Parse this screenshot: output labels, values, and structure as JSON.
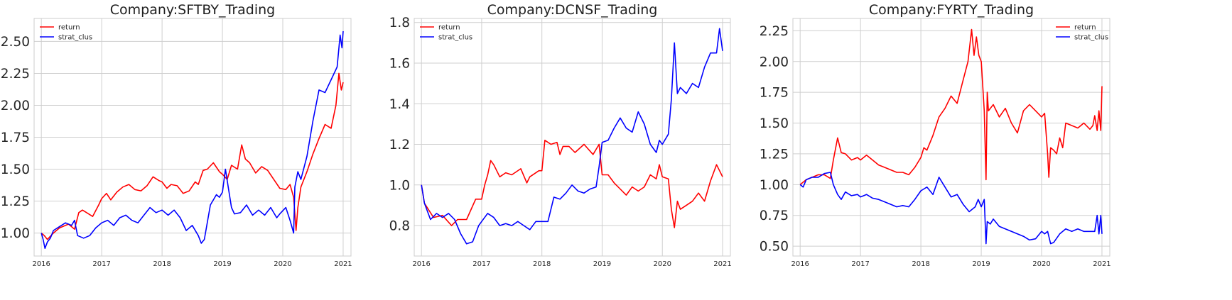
{
  "chart_data": [
    {
      "type": "line",
      "title": "Company:SFTBY_Trading",
      "xlabel": "",
      "ylabel": "",
      "xlim": [
        2015.88,
        2021.13
      ],
      "ylim": [
        0.82,
        2.68
      ],
      "xticks": [
        2016,
        2017,
        2018,
        2019,
        2020,
        2021
      ],
      "yticks": [
        1.0,
        1.25,
        1.5,
        1.75,
        2.0,
        2.25,
        2.5
      ],
      "ytick_labels": [
        "1.00",
        "1.25",
        "1.50",
        "1.75",
        "2.00",
        "2.25",
        "2.50"
      ],
      "grid": true,
      "legend_position": "upper-left",
      "series": [
        {
          "name": "return",
          "color": "#ff0000",
          "x": [
            2016.0,
            2016.05,
            2016.1,
            2016.2,
            2016.3,
            2016.45,
            2016.55,
            2016.62,
            2016.68,
            2016.75,
            2016.85,
            2016.95,
            2017.0,
            2017.08,
            2017.15,
            2017.25,
            2017.35,
            2017.45,
            2017.55,
            2017.65,
            2017.75,
            2017.85,
            2017.95,
            2018.0,
            2018.08,
            2018.15,
            2018.25,
            2018.35,
            2018.45,
            2018.55,
            2018.6,
            2018.68,
            2018.75,
            2018.85,
            2018.95,
            2019.0,
            2019.08,
            2019.15,
            2019.25,
            2019.32,
            2019.38,
            2019.45,
            2019.55,
            2019.65,
            2019.75,
            2019.85,
            2019.95,
            2020.05,
            2020.12,
            2020.18,
            2020.22,
            2020.25,
            2020.3,
            2020.4,
            2020.5,
            2020.6,
            2020.7,
            2020.8,
            2020.88,
            2020.93,
            2020.97,
            2021.0
          ],
          "y": [
            1.0,
            0.98,
            0.95,
            1.0,
            1.04,
            1.07,
            1.03,
            1.16,
            1.18,
            1.16,
            1.13,
            1.22,
            1.27,
            1.31,
            1.26,
            1.32,
            1.36,
            1.38,
            1.34,
            1.33,
            1.37,
            1.44,
            1.41,
            1.4,
            1.35,
            1.38,
            1.37,
            1.31,
            1.33,
            1.4,
            1.38,
            1.49,
            1.5,
            1.55,
            1.48,
            1.46,
            1.42,
            1.53,
            1.5,
            1.69,
            1.58,
            1.55,
            1.47,
            1.52,
            1.49,
            1.42,
            1.35,
            1.34,
            1.38,
            1.28,
            1.02,
            1.2,
            1.36,
            1.48,
            1.62,
            1.74,
            1.85,
            1.82,
            2.0,
            2.25,
            2.12,
            2.18
          ]
        },
        {
          "name": "strat_clus",
          "color": "#0000ff",
          "x": [
            2016.0,
            2016.03,
            2016.06,
            2016.1,
            2016.15,
            2016.2,
            2016.3,
            2016.4,
            2016.5,
            2016.55,
            2016.6,
            2016.7,
            2016.8,
            2016.9,
            2017.0,
            2017.1,
            2017.2,
            2017.3,
            2017.4,
            2017.5,
            2017.6,
            2017.7,
            2017.8,
            2017.9,
            2018.0,
            2018.1,
            2018.2,
            2018.3,
            2018.4,
            2018.5,
            2018.6,
            2018.65,
            2018.7,
            2018.8,
            2018.9,
            2018.95,
            2019.0,
            2019.05,
            2019.1,
            2019.15,
            2019.2,
            2019.3,
            2019.4,
            2019.5,
            2019.6,
            2019.7,
            2019.8,
            2019.9,
            2019.95,
            2020.05,
            2020.12,
            2020.18,
            2020.2,
            2020.25,
            2020.3,
            2020.4,
            2020.5,
            2020.6,
            2020.7,
            2020.8,
            2020.9,
            2020.95,
            2020.98,
            2021.0
          ],
          "y": [
            1.0,
            0.95,
            0.88,
            0.93,
            0.96,
            1.02,
            1.05,
            1.08,
            1.06,
            1.1,
            0.98,
            0.96,
            0.98,
            1.04,
            1.08,
            1.1,
            1.06,
            1.12,
            1.14,
            1.1,
            1.08,
            1.14,
            1.2,
            1.16,
            1.18,
            1.14,
            1.18,
            1.12,
            1.02,
            1.06,
            0.98,
            0.92,
            0.95,
            1.22,
            1.3,
            1.28,
            1.32,
            1.5,
            1.35,
            1.2,
            1.15,
            1.16,
            1.22,
            1.14,
            1.18,
            1.14,
            1.2,
            1.12,
            1.15,
            1.2,
            1.1,
            1.0,
            1.36,
            1.48,
            1.42,
            1.6,
            1.88,
            2.12,
            2.1,
            2.2,
            2.3,
            2.55,
            2.45,
            2.58
          ]
        }
      ]
    },
    {
      "type": "line",
      "title": "Company:DCNSF_Trading",
      "xlabel": "",
      "ylabel": "",
      "xlim": [
        2015.88,
        2021.13
      ],
      "ylim": [
        0.65,
        1.82
      ],
      "xticks": [
        2016,
        2017,
        2018,
        2019,
        2020,
        2021
      ],
      "yticks": [
        0.8,
        1.0,
        1.2,
        1.4,
        1.6,
        1.8
      ],
      "ytick_labels": [
        "0.8",
        "1.0",
        "1.2",
        "1.4",
        "1.6",
        "1.8"
      ],
      "grid": true,
      "legend_position": "upper-left",
      "series": [
        {
          "name": "return",
          "color": "#ff0000",
          "x": [
            2016.0,
            2016.05,
            2016.2,
            2016.35,
            2016.5,
            2016.6,
            2016.75,
            2016.9,
            2017.0,
            2017.05,
            2017.1,
            2017.15,
            2017.2,
            2017.3,
            2017.4,
            2017.5,
            2017.65,
            2017.75,
            2017.8,
            2017.95,
            2018.0,
            2018.05,
            2018.15,
            2018.25,
            2018.3,
            2018.35,
            2018.45,
            2018.55,
            2018.7,
            2018.85,
            2018.95,
            2019.0,
            2019.1,
            2019.2,
            2019.3,
            2019.4,
            2019.5,
            2019.6,
            2019.7,
            2019.8,
            2019.9,
            2019.95,
            2020.0,
            2020.1,
            2020.15,
            2020.2,
            2020.25,
            2020.3,
            2020.4,
            2020.5,
            2020.6,
            2020.7,
            2020.8,
            2020.9,
            2021.0
          ],
          "y": [
            1.0,
            0.91,
            0.84,
            0.85,
            0.8,
            0.83,
            0.83,
            0.93,
            0.93,
            1.0,
            1.05,
            1.12,
            1.1,
            1.04,
            1.06,
            1.05,
            1.08,
            1.01,
            1.04,
            1.07,
            1.07,
            1.22,
            1.2,
            1.21,
            1.15,
            1.19,
            1.19,
            1.16,
            1.2,
            1.15,
            1.2,
            1.05,
            1.05,
            1.01,
            0.98,
            0.95,
            0.99,
            0.97,
            0.99,
            1.05,
            1.03,
            1.1,
            1.04,
            1.03,
            0.88,
            0.79,
            0.92,
            0.88,
            0.9,
            0.92,
            0.96,
            0.92,
            1.02,
            1.1,
            1.04
          ]
        },
        {
          "name": "strat_clus",
          "color": "#0000ff",
          "x": [
            2016.0,
            2016.05,
            2016.15,
            2016.25,
            2016.35,
            2016.45,
            2016.55,
            2016.65,
            2016.75,
            2016.85,
            2016.95,
            2017.0,
            2017.1,
            2017.2,
            2017.3,
            2017.4,
            2017.5,
            2017.6,
            2017.7,
            2017.8,
            2017.9,
            2018.0,
            2018.1,
            2018.2,
            2018.3,
            2018.4,
            2018.5,
            2018.6,
            2018.7,
            2018.8,
            2018.9,
            2018.95,
            2019.0,
            2019.1,
            2019.2,
            2019.3,
            2019.4,
            2019.5,
            2019.6,
            2019.7,
            2019.8,
            2019.9,
            2019.95,
            2020.0,
            2020.1,
            2020.15,
            2020.2,
            2020.25,
            2020.3,
            2020.4,
            2020.5,
            2020.6,
            2020.7,
            2020.8,
            2020.9,
            2020.95,
            2021.0
          ],
          "y": [
            1.0,
            0.91,
            0.83,
            0.86,
            0.84,
            0.86,
            0.83,
            0.76,
            0.71,
            0.72,
            0.8,
            0.82,
            0.86,
            0.84,
            0.8,
            0.81,
            0.8,
            0.82,
            0.8,
            0.78,
            0.82,
            0.82,
            0.82,
            0.94,
            0.93,
            0.96,
            1.0,
            0.97,
            0.96,
            0.98,
            0.99,
            1.09,
            1.21,
            1.22,
            1.28,
            1.33,
            1.28,
            1.26,
            1.36,
            1.3,
            1.2,
            1.16,
            1.22,
            1.2,
            1.25,
            1.42,
            1.7,
            1.45,
            1.48,
            1.45,
            1.5,
            1.48,
            1.58,
            1.65,
            1.65,
            1.77,
            1.66
          ]
        }
      ]
    },
    {
      "type": "line",
      "title": "Company:FYRTY_Trading",
      "xlabel": "",
      "ylabel": "",
      "xlim": [
        2015.88,
        2021.13
      ],
      "ylim": [
        0.42,
        2.35
      ],
      "xticks": [
        2016,
        2017,
        2018,
        2019,
        2020,
        2021
      ],
      "yticks": [
        0.5,
        0.75,
        1.0,
        1.25,
        1.5,
        1.75,
        2.0,
        2.25
      ],
      "ytick_labels": [
        "0.50",
        "0.75",
        "1.00",
        "1.25",
        "1.50",
        "1.75",
        "2.00",
        "2.25"
      ],
      "grid": true,
      "legend_position": "upper-right",
      "series": [
        {
          "name": "return",
          "color": "#ff0000",
          "x": [
            2016.0,
            2016.1,
            2016.2,
            2016.3,
            2016.4,
            2016.5,
            2016.55,
            2016.62,
            2016.68,
            2016.75,
            2016.85,
            2016.95,
            2017.0,
            2017.1,
            2017.2,
            2017.3,
            2017.4,
            2017.5,
            2017.6,
            2017.7,
            2017.8,
            2017.9,
            2018.0,
            2018.05,
            2018.1,
            2018.2,
            2018.3,
            2018.4,
            2018.5,
            2018.6,
            2018.7,
            2018.78,
            2018.84,
            2018.88,
            2018.92,
            2018.96,
            2019.0,
            2019.05,
            2019.08,
            2019.1,
            2019.12,
            2019.2,
            2019.3,
            2019.4,
            2019.5,
            2019.6,
            2019.7,
            2019.8,
            2019.9,
            2020.0,
            2020.05,
            2020.1,
            2020.12,
            2020.15,
            2020.2,
            2020.25,
            2020.3,
            2020.35,
            2020.4,
            2020.5,
            2020.6,
            2020.7,
            2020.8,
            2020.85,
            2020.88,
            2020.92,
            2020.95,
            2020.98,
            2021.0
          ],
          "y": [
            1.0,
            1.04,
            1.06,
            1.08,
            1.08,
            1.05,
            1.2,
            1.38,
            1.26,
            1.25,
            1.2,
            1.22,
            1.2,
            1.24,
            1.2,
            1.16,
            1.14,
            1.12,
            1.1,
            1.1,
            1.08,
            1.14,
            1.22,
            1.3,
            1.28,
            1.4,
            1.55,
            1.62,
            1.72,
            1.66,
            1.85,
            2.0,
            2.26,
            2.05,
            2.2,
            2.05,
            2.0,
            1.6,
            1.04,
            1.75,
            1.6,
            1.65,
            1.55,
            1.62,
            1.5,
            1.42,
            1.6,
            1.65,
            1.6,
            1.55,
            1.58,
            1.25,
            1.06,
            1.3,
            1.28,
            1.25,
            1.38,
            1.3,
            1.5,
            1.48,
            1.46,
            1.5,
            1.45,
            1.48,
            1.56,
            1.44,
            1.6,
            1.44,
            1.8
          ]
        },
        {
          "name": "strat_clus",
          "color": "#0000ff",
          "x": [
            2016.0,
            2016.05,
            2016.1,
            2016.2,
            2016.3,
            2016.4,
            2016.5,
            2016.55,
            2016.62,
            2016.68,
            2016.75,
            2016.85,
            2016.95,
            2017.0,
            2017.1,
            2017.2,
            2017.3,
            2017.4,
            2017.5,
            2017.6,
            2017.7,
            2017.8,
            2017.9,
            2018.0,
            2018.1,
            2018.2,
            2018.3,
            2018.4,
            2018.5,
            2018.6,
            2018.7,
            2018.8,
            2018.9,
            2018.95,
            2019.0,
            2019.05,
            2019.08,
            2019.1,
            2019.15,
            2019.2,
            2019.3,
            2019.4,
            2019.5,
            2019.6,
            2019.7,
            2019.8,
            2019.9,
            2020.0,
            2020.05,
            2020.1,
            2020.15,
            2020.2,
            2020.3,
            2020.4,
            2020.5,
            2020.6,
            2020.7,
            2020.8,
            2020.88,
            2020.92,
            2020.95,
            2020.98,
            2021.0
          ],
          "y": [
            1.0,
            0.98,
            1.04,
            1.06,
            1.06,
            1.09,
            1.1,
            1.0,
            0.92,
            0.88,
            0.94,
            0.91,
            0.92,
            0.9,
            0.92,
            0.89,
            0.88,
            0.86,
            0.84,
            0.82,
            0.83,
            0.82,
            0.88,
            0.95,
            0.98,
            0.92,
            1.06,
            0.98,
            0.9,
            0.92,
            0.84,
            0.78,
            0.82,
            0.88,
            0.82,
            0.88,
            0.52,
            0.7,
            0.68,
            0.72,
            0.66,
            0.64,
            0.62,
            0.6,
            0.58,
            0.55,
            0.56,
            0.62,
            0.6,
            0.62,
            0.52,
            0.53,
            0.6,
            0.64,
            0.62,
            0.64,
            0.62,
            0.62,
            0.62,
            0.75,
            0.6,
            0.75,
            0.6
          ]
        }
      ]
    }
  ]
}
